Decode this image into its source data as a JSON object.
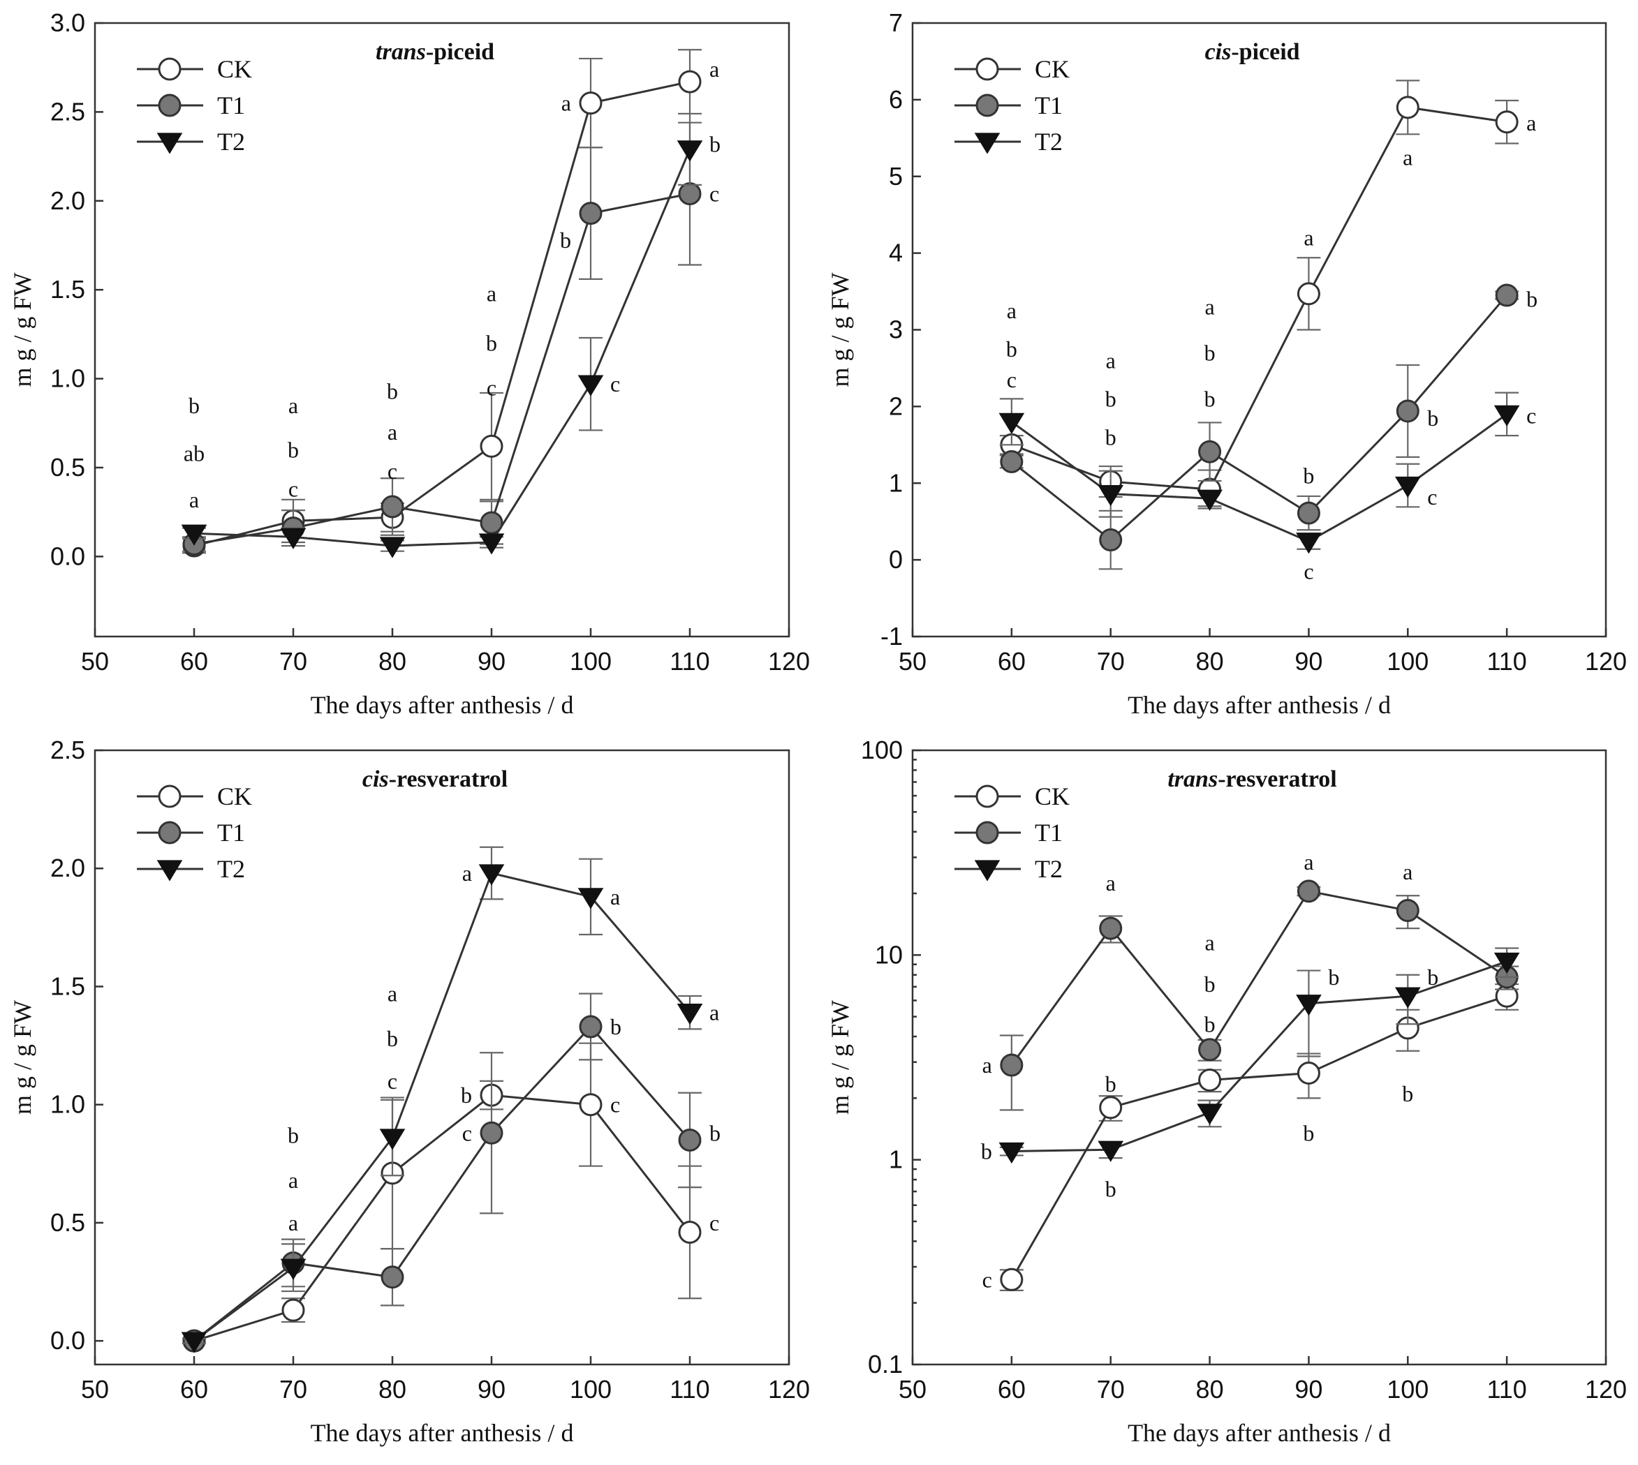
{
  "colors": {
    "ck_fill": "#ffffff",
    "t1_fill": "#777777",
    "t2_fill": "#111111",
    "line": "#333333"
  },
  "chart_data": [
    {
      "type": "line",
      "title_italic": "trans",
      "title_rest": "-piceid",
      "xlabel": "The days after anthesis / d",
      "ylabel": "m g / g FW",
      "yscale": "linear",
      "xlim": [
        50,
        120
      ],
      "ylim": [
        -0.45,
        3.0
      ],
      "xticks": [
        50,
        60,
        70,
        80,
        90,
        100,
        110,
        120
      ],
      "xtick_labels": [
        "50",
        "60",
        "70",
        "80",
        "90",
        "100",
        "110",
        "120"
      ],
      "yticks": [
        0,
        0.5,
        1.0,
        1.5,
        2.0,
        2.5,
        3.0
      ],
      "ytick_labels": [
        "0.0",
        "0.5",
        "1.0",
        "1.5",
        "2.0",
        "2.5",
        "3.0"
      ],
      "legend": [
        "CK",
        "T1",
        "T2"
      ],
      "x": [
        60,
        70,
        80,
        90,
        100,
        110
      ],
      "series": [
        {
          "name": "CK",
          "marker": "circle-open",
          "values": [
            0.06,
            0.2,
            0.22,
            0.62,
            2.55,
            2.67
          ],
          "errors": [
            0.04,
            0.12,
            0.08,
            0.3,
            0.25,
            0.18
          ]
        },
        {
          "name": "T1",
          "marker": "circle-filled",
          "values": [
            0.07,
            0.16,
            0.28,
            0.19,
            1.93,
            2.04
          ],
          "errors": [
            0.04,
            0.1,
            0.16,
            0.12,
            0.37,
            0.4
          ]
        },
        {
          "name": "T2",
          "marker": "triangle-down",
          "values": [
            0.13,
            0.11,
            0.06,
            0.08,
            0.97,
            2.29
          ],
          "errors": [
            0.03,
            0.05,
            0.03,
            0.03,
            0.26,
            0.2
          ]
        }
      ],
      "annotations": [
        {
          "x": 60,
          "y": 0.85,
          "text": "b",
          "pos": "center"
        },
        {
          "x": 60,
          "y": 0.58,
          "text": "ab",
          "pos": "center"
        },
        {
          "x": 60,
          "y": 0.32,
          "text": "a",
          "pos": "center"
        },
        {
          "x": 70,
          "y": 0.85,
          "text": "a",
          "pos": "center"
        },
        {
          "x": 70,
          "y": 0.6,
          "text": "b",
          "pos": "center"
        },
        {
          "x": 70,
          "y": 0.38,
          "text": "c",
          "pos": "center"
        },
        {
          "x": 80,
          "y": 0.93,
          "text": "b",
          "pos": "center"
        },
        {
          "x": 80,
          "y": 0.7,
          "text": "a",
          "pos": "center"
        },
        {
          "x": 80,
          "y": 0.48,
          "text": "c",
          "pos": "center"
        },
        {
          "x": 90,
          "y": 1.48,
          "text": "a",
          "pos": "center"
        },
        {
          "x": 90,
          "y": 1.2,
          "text": "b",
          "pos": "center"
        },
        {
          "x": 90,
          "y": 0.95,
          "text": "c",
          "pos": "center"
        },
        {
          "x": 100,
          "y": 2.55,
          "text": "a",
          "pos": "left"
        },
        {
          "x": 100,
          "y": 1.78,
          "text": "b",
          "pos": "left"
        },
        {
          "x": 100,
          "y": 0.97,
          "text": "c",
          "pos": "right"
        },
        {
          "x": 110,
          "y": 2.74,
          "text": "a",
          "pos": "right"
        },
        {
          "x": 110,
          "y": 2.32,
          "text": "b",
          "pos": "right"
        },
        {
          "x": 110,
          "y": 2.04,
          "text": "c",
          "pos": "right"
        }
      ]
    },
    {
      "type": "line",
      "title_italic": "cis",
      "title_rest": "-piceid",
      "xlabel": "The days after anthesis / d",
      "ylabel": "m g / g FW",
      "yscale": "linear",
      "xlim": [
        50,
        120
      ],
      "ylim": [
        -1,
        7
      ],
      "xticks": [
        50,
        60,
        70,
        80,
        90,
        100,
        110,
        120
      ],
      "xtick_labels": [
        "50",
        "60",
        "70",
        "80",
        "90",
        "100",
        "110",
        "120"
      ],
      "yticks": [
        -1,
        0,
        1,
        2,
        3,
        4,
        5,
        6,
        7
      ],
      "ytick_labels": [
        "-1",
        "0",
        "1",
        "2",
        "3",
        "4",
        "5",
        "6",
        "7"
      ],
      "legend": [
        "CK",
        "T1",
        "T2"
      ],
      "x": [
        60,
        70,
        80,
        90,
        100,
        110
      ],
      "series": [
        {
          "name": "CK",
          "marker": "circle-open",
          "values": [
            1.5,
            1.02,
            0.92,
            3.47,
            5.9,
            5.71
          ],
          "errors": [
            0.12,
            0.2,
            0.25,
            0.47,
            0.35,
            0.28
          ]
        },
        {
          "name": "T1",
          "marker": "circle-filled",
          "values": [
            1.28,
            0.26,
            1.41,
            0.61,
            1.94,
            3.45
          ],
          "errors": [
            0.08,
            0.38,
            0.38,
            0.22,
            0.6,
            0.05
          ]
        },
        {
          "name": "T2",
          "marker": "triangle-down",
          "values": [
            1.8,
            0.86,
            0.8,
            0.24,
            0.97,
            1.9
          ],
          "errors": [
            0.3,
            0.3,
            0.1,
            0.1,
            0.28,
            0.28
          ]
        }
      ],
      "annotations": [
        {
          "x": 60,
          "y": 3.25,
          "text": "a",
          "pos": "center"
        },
        {
          "x": 60,
          "y": 2.75,
          "text": "b",
          "pos": "center"
        },
        {
          "x": 60,
          "y": 2.35,
          "text": "c",
          "pos": "center"
        },
        {
          "x": 70,
          "y": 2.6,
          "text": "a",
          "pos": "center"
        },
        {
          "x": 70,
          "y": 2.1,
          "text": "b",
          "pos": "center"
        },
        {
          "x": 70,
          "y": 1.6,
          "text": "b",
          "pos": "center"
        },
        {
          "x": 80,
          "y": 3.3,
          "text": "a",
          "pos": "center"
        },
        {
          "x": 80,
          "y": 2.7,
          "text": "b",
          "pos": "center"
        },
        {
          "x": 80,
          "y": 2.1,
          "text": "b",
          "pos": "center"
        },
        {
          "x": 90,
          "y": 4.2,
          "text": "a",
          "pos": "center"
        },
        {
          "x": 90,
          "y": 1.1,
          "text": "b",
          "pos": "center"
        },
        {
          "x": 90,
          "y": -0.15,
          "text": "c",
          "pos": "center"
        },
        {
          "x": 100,
          "y": 5.25,
          "text": "a",
          "pos": "center"
        },
        {
          "x": 100,
          "y": 1.85,
          "text": "b",
          "pos": "right"
        },
        {
          "x": 100,
          "y": 0.82,
          "text": "c",
          "pos": "right"
        },
        {
          "x": 110,
          "y": 5.7,
          "text": "a",
          "pos": "right"
        },
        {
          "x": 110,
          "y": 3.4,
          "text": "b",
          "pos": "right"
        },
        {
          "x": 110,
          "y": 1.88,
          "text": "c",
          "pos": "right"
        }
      ]
    },
    {
      "type": "line",
      "title_italic": "cis",
      "title_rest": "-resveratrol",
      "xlabel": "The days after anthesis / d",
      "ylabel": "m g / g FW",
      "yscale": "linear",
      "xlim": [
        50,
        120
      ],
      "ylim": [
        -0.1,
        2.5
      ],
      "xticks": [
        50,
        60,
        70,
        80,
        90,
        100,
        110,
        120
      ],
      "xtick_labels": [
        "50",
        "60",
        "70",
        "80",
        "90",
        "100",
        "110",
        "120"
      ],
      "yticks": [
        0,
        0.5,
        1.0,
        1.5,
        2.0,
        2.5
      ],
      "ytick_labels": [
        "0.0",
        "0.5",
        "1.0",
        "1.5",
        "2.0",
        "2.5"
      ],
      "legend": [
        "CK",
        "T1",
        "T2"
      ],
      "x": [
        60,
        70,
        80,
        90,
        100,
        110
      ],
      "series": [
        {
          "name": "CK",
          "marker": "circle-open",
          "values": [
            0.0,
            0.13,
            0.71,
            1.04,
            1.0,
            0.46
          ],
          "errors": [
            0.01,
            0.05,
            0.32,
            0.06,
            0.26,
            0.28
          ]
        },
        {
          "name": "T1",
          "marker": "circle-filled",
          "values": [
            0.0,
            0.33,
            0.27,
            0.88,
            1.33,
            0.85
          ],
          "errors": [
            0.01,
            0.1,
            0.12,
            0.34,
            0.14,
            0.2
          ]
        },
        {
          "name": "T2",
          "marker": "triangle-down",
          "values": [
            0.0,
            0.31,
            0.86,
            1.98,
            1.88,
            1.39
          ],
          "errors": [
            0.01,
            0.1,
            0.16,
            0.11,
            0.16,
            0.07
          ]
        }
      ],
      "annotations": [
        {
          "x": 70,
          "y": 0.87,
          "text": "b",
          "pos": "center"
        },
        {
          "x": 70,
          "y": 0.68,
          "text": "a",
          "pos": "center"
        },
        {
          "x": 70,
          "y": 0.5,
          "text": "a",
          "pos": "center"
        },
        {
          "x": 80,
          "y": 1.47,
          "text": "a",
          "pos": "center"
        },
        {
          "x": 80,
          "y": 1.28,
          "text": "b",
          "pos": "center"
        },
        {
          "x": 80,
          "y": 1.1,
          "text": "c",
          "pos": "center"
        },
        {
          "x": 90,
          "y": 1.98,
          "text": "a",
          "pos": "left"
        },
        {
          "x": 90,
          "y": 1.04,
          "text": "b",
          "pos": "left"
        },
        {
          "x": 90,
          "y": 0.88,
          "text": "c",
          "pos": "left"
        },
        {
          "x": 100,
          "y": 1.88,
          "text": "a",
          "pos": "right"
        },
        {
          "x": 100,
          "y": 1.33,
          "text": "b",
          "pos": "right"
        },
        {
          "x": 100,
          "y": 1.0,
          "text": "c",
          "pos": "right"
        },
        {
          "x": 110,
          "y": 1.39,
          "text": "a",
          "pos": "right"
        },
        {
          "x": 110,
          "y": 0.88,
          "text": "b",
          "pos": "right"
        },
        {
          "x": 110,
          "y": 0.5,
          "text": "c",
          "pos": "right"
        }
      ]
    },
    {
      "type": "line",
      "title_italic": "trans",
      "title_rest": "-resveratrol",
      "xlabel": "The days after anthesis / d",
      "ylabel": "m g / g FW",
      "yscale": "log",
      "xlim": [
        50,
        120
      ],
      "ylim": [
        0.1,
        100
      ],
      "xticks": [
        50,
        60,
        70,
        80,
        90,
        100,
        110,
        120
      ],
      "xtick_labels": [
        "50",
        "60",
        "70",
        "80",
        "90",
        "100",
        "110",
        "120"
      ],
      "yticks": [
        0.1,
        1,
        10,
        100
      ],
      "ytick_labels": [
        "0.1",
        "1",
        "10",
        "100"
      ],
      "legend": [
        "CK",
        "T1",
        "T2"
      ],
      "x": [
        60,
        70,
        80,
        90,
        100,
        110
      ],
      "series": [
        {
          "name": "CK",
          "marker": "circle-open",
          "values": [
            0.26,
            1.8,
            2.45,
            2.65,
            4.4,
            6.3
          ],
          "errors": [
            0.03,
            0.25,
            0.3,
            0.65,
            1.0,
            0.9
          ]
        },
        {
          "name": "T1",
          "marker": "circle-filled",
          "values": [
            2.9,
            13.5,
            3.45,
            20.5,
            16.5,
            7.8
          ],
          "errors": [
            1.15,
            2.0,
            0.4,
            1.0,
            3.0,
            1.0
          ]
        },
        {
          "name": "T2",
          "marker": "triangle-down",
          "values": [
            1.1,
            1.12,
            1.7,
            5.8,
            6.3,
            9.3
          ],
          "errors": [
            0.05,
            0.1,
            0.25,
            2.6,
            1.7,
            1.5
          ]
        }
      ],
      "annotations": [
        {
          "x": 60,
          "y": 2.9,
          "text": "a",
          "pos": "left"
        },
        {
          "x": 60,
          "y": 1.1,
          "text": "b",
          "pos": "left"
        },
        {
          "x": 60,
          "y": 0.26,
          "text": "c",
          "pos": "left"
        },
        {
          "x": 70,
          "y": 22.5,
          "text": "a",
          "pos": "center"
        },
        {
          "x": 70,
          "y": 2.35,
          "text": "b",
          "pos": "center"
        },
        {
          "x": 70,
          "y": 0.72,
          "text": "b",
          "pos": "center"
        },
        {
          "x": 80,
          "y": 11.5,
          "text": "a",
          "pos": "center"
        },
        {
          "x": 80,
          "y": 7.2,
          "text": "b",
          "pos": "center"
        },
        {
          "x": 80,
          "y": 4.6,
          "text": "b",
          "pos": "center"
        },
        {
          "x": 90,
          "y": 28.5,
          "text": "a",
          "pos": "center"
        },
        {
          "x": 90,
          "y": 7.8,
          "text": "b",
          "pos": "right"
        },
        {
          "x": 90,
          "y": 1.35,
          "text": "b",
          "pos": "center"
        },
        {
          "x": 100,
          "y": 25.5,
          "text": "a",
          "pos": "center"
        },
        {
          "x": 100,
          "y": 7.8,
          "text": "b",
          "pos": "right"
        },
        {
          "x": 100,
          "y": 2.1,
          "text": "b",
          "pos": "center"
        }
      ]
    }
  ]
}
